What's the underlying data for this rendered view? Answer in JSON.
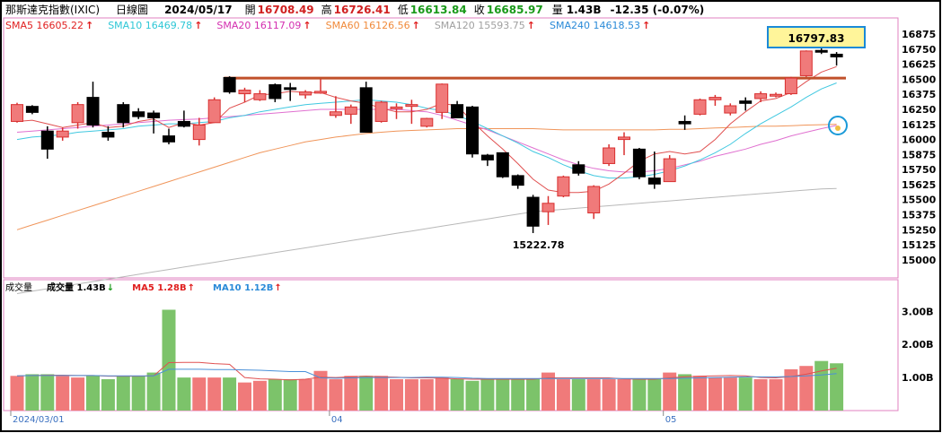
{
  "header": {
    "index_name": "那斯達克指數(IXIC)",
    "period": "日線圖",
    "date": "2024/05/17",
    "open_label": "開",
    "open_value": "16708.49",
    "high_label": "高",
    "high_value": "16726.41",
    "low_label": "低",
    "low_value": "16613.84",
    "close_label": "收",
    "close_value": "16685.97",
    "volume_label": "量",
    "volume_value": "1.43B",
    "change": "-12.35 (-0.07%)"
  },
  "ma_legend": [
    {
      "label": "SMA5 16605.22",
      "arrow": "↑",
      "color": "#e02020"
    },
    {
      "label": "SMA10 16469.78",
      "arrow": "↑",
      "color": "#2ec7d6"
    },
    {
      "label": "SMA20 16117.09",
      "arrow": "↑",
      "color": "#d42fb0"
    },
    {
      "label": "SMA60 16126.56",
      "arrow": "↑",
      "color": "#f08a3a"
    },
    {
      "label": "SMA120 15593.75",
      "arrow": "↑",
      "color": "#a0a0a0"
    },
    {
      "label": "SMA240 14618.53",
      "arrow": "↑",
      "color": "#2a8ad8"
    }
  ],
  "volume_legend": {
    "title": "成交量",
    "items": [
      {
        "label": "成交量 1.43B",
        "arrow": "↓",
        "color": "#000000",
        "arrow_color": "#1a9a1a"
      },
      {
        "label": "MA5 1.28B",
        "arrow": "↑",
        "color": "#e02020",
        "arrow_color": "#e02020"
      },
      {
        "label": "MA10 1.12B",
        "arrow": "↑",
        "color": "#2a8ad8",
        "arrow_color": "#e02020"
      }
    ]
  },
  "annotations": {
    "high_marker": "16797.83",
    "low_marker": "15222.78",
    "resistance_level": 16510
  },
  "colors": {
    "up_fill": "#f07a7a",
    "up_stroke": "#d93030",
    "down_fill": "#000000",
    "vol_up": "#f07a7a",
    "vol_down": "#7cc36a",
    "highlight": "#fff59a"
  },
  "chart_data": {
    "type": "candlestick",
    "price_axis": {
      "ticks": [
        "16875",
        "16750",
        "16625",
        "16500",
        "16375",
        "16250",
        "16125",
        "16000",
        "15875",
        "15750",
        "15625",
        "15500",
        "15375",
        "15250",
        "15125",
        "15000"
      ],
      "range": [
        14880,
        16980
      ]
    },
    "volume_axis": {
      "ticks": [
        "3.00B",
        "2.00B",
        "1.00B"
      ],
      "range": [
        0,
        3.85
      ]
    },
    "x_labels": [
      {
        "index": 0,
        "label": "2024/03/01"
      },
      {
        "index": 21,
        "label": "04"
      },
      {
        "index": 43,
        "label": "05"
      }
    ],
    "candles": [
      {
        "o": 16150,
        "h": 16305,
        "l": 16140,
        "c": 16290,
        "v": 1.05
      },
      {
        "o": 16275,
        "h": 16285,
        "l": 16210,
        "c": 16225,
        "v": 1.1
      },
      {
        "o": 16070,
        "h": 16110,
        "l": 15840,
        "c": 15920,
        "v": 1.1
      },
      {
        "o": 16020,
        "h": 16100,
        "l": 15990,
        "c": 16070,
        "v": 1.05
      },
      {
        "o": 16140,
        "h": 16310,
        "l": 16090,
        "c": 16290,
        "v": 1.0
      },
      {
        "o": 16350,
        "h": 16480,
        "l": 16100,
        "c": 16120,
        "v": 1.05
      },
      {
        "o": 16060,
        "h": 16110,
        "l": 15990,
        "c": 16020,
        "v": 0.95
      },
      {
        "o": 16290,
        "h": 16310,
        "l": 16100,
        "c": 16140,
        "v": 1.05
      },
      {
        "o": 16230,
        "h": 16260,
        "l": 16170,
        "c": 16190,
        "v": 1.05
      },
      {
        "o": 16220,
        "h": 16240,
        "l": 16050,
        "c": 16180,
        "v": 1.15
      },
      {
        "o": 16030,
        "h": 16090,
        "l": 15960,
        "c": 15980,
        "v": 3.05
      },
      {
        "o": 16150,
        "h": 16240,
        "l": 16100,
        "c": 16110,
        "v": 1.0
      },
      {
        "o": 16000,
        "h": 16180,
        "l": 15950,
        "c": 16120,
        "v": 1.0
      },
      {
        "o": 16140,
        "h": 16350,
        "l": 16140,
        "c": 16330,
        "v": 1.0
      },
      {
        "o": 16515,
        "h": 16525,
        "l": 16380,
        "c": 16395,
        "v": 1.0
      },
      {
        "o": 16380,
        "h": 16430,
        "l": 16310,
        "c": 16410,
        "v": 0.85
      },
      {
        "o": 16330,
        "h": 16410,
        "l": 16320,
        "c": 16380,
        "v": 0.9
      },
      {
        "o": 16455,
        "h": 16465,
        "l": 16310,
        "c": 16340,
        "v": 0.95
      },
      {
        "o": 16430,
        "h": 16470,
        "l": 16320,
        "c": 16420,
        "v": 0.95
      },
      {
        "o": 16370,
        "h": 16410,
        "l": 16340,
        "c": 16395,
        "v": 0.95
      },
      {
        "o": 16400,
        "h": 16500,
        "l": 16380,
        "c": 16400,
        "v": 1.2
      },
      {
        "o": 16200,
        "h": 16360,
        "l": 16180,
        "c": 16230,
        "v": 0.95
      },
      {
        "o": 16210,
        "h": 16290,
        "l": 16130,
        "c": 16270,
        "v": 1.05
      },
      {
        "o": 16430,
        "h": 16480,
        "l": 16060,
        "c": 16060,
        "v": 1.05
      },
      {
        "o": 16150,
        "h": 16320,
        "l": 16140,
        "c": 16310,
        "v": 1.05
      },
      {
        "o": 16255,
        "h": 16300,
        "l": 16170,
        "c": 16270,
        "v": 0.95
      },
      {
        "o": 16280,
        "h": 16330,
        "l": 16130,
        "c": 16290,
        "v": 0.95
      },
      {
        "o": 16110,
        "h": 16180,
        "l": 16100,
        "c": 16175,
        "v": 0.95
      },
      {
        "o": 16225,
        "h": 16465,
        "l": 16170,
        "c": 16460,
        "v": 1.0
      },
      {
        "o": 16290,
        "h": 16320,
        "l": 16180,
        "c": 16180,
        "v": 0.95
      },
      {
        "o": 16270,
        "h": 16280,
        "l": 15850,
        "c": 15880,
        "v": 0.9
      },
      {
        "o": 15870,
        "h": 15880,
        "l": 15780,
        "c": 15830,
        "v": 0.95
      },
      {
        "o": 15890,
        "h": 15890,
        "l": 15680,
        "c": 15690,
        "v": 0.95
      },
      {
        "o": 15700,
        "h": 15710,
        "l": 15590,
        "c": 15620,
        "v": 0.95
      },
      {
        "o": 15520,
        "h": 15540,
        "l": 15222.78,
        "c": 15280,
        "v": 0.95
      },
      {
        "o": 15400,
        "h": 15530,
        "l": 15290,
        "c": 15470,
        "v": 1.15
      },
      {
        "o": 15530,
        "h": 15700,
        "l": 15520,
        "c": 15690,
        "v": 0.95
      },
      {
        "o": 15790,
        "h": 15820,
        "l": 15700,
        "c": 15720,
        "v": 0.95
      },
      {
        "o": 15390,
        "h": 15620,
        "l": 15340,
        "c": 15610,
        "v": 0.95
      },
      {
        "o": 15800,
        "h": 15960,
        "l": 15780,
        "c": 15930,
        "v": 0.95
      },
      {
        "o": 16000,
        "h": 16060,
        "l": 15870,
        "c": 16020,
        "v": 0.95
      },
      {
        "o": 15920,
        "h": 15930,
        "l": 15670,
        "c": 15690,
        "v": 0.95
      },
      {
        "o": 15680,
        "h": 15900,
        "l": 15590,
        "c": 15630,
        "v": 0.95
      },
      {
        "o": 15650,
        "h": 15870,
        "l": 15650,
        "c": 15840,
        "v": 1.15
      },
      {
        "o": 16150,
        "h": 16200,
        "l": 16080,
        "c": 16130,
        "v": 1.1
      },
      {
        "o": 16210,
        "h": 16340,
        "l": 16200,
        "c": 16330,
        "v": 1.05
      },
      {
        "o": 16330,
        "h": 16370,
        "l": 16280,
        "c": 16350,
        "v": 1.0
      },
      {
        "o": 16220,
        "h": 16300,
        "l": 16200,
        "c": 16280,
        "v": 1.0
      },
      {
        "o": 16320,
        "h": 16350,
        "l": 16240,
        "c": 16300,
        "v": 1.0
      },
      {
        "o": 16340,
        "h": 16400,
        "l": 16310,
        "c": 16380,
        "v": 0.95
      },
      {
        "o": 16370,
        "h": 16390,
        "l": 16350,
        "c": 16375,
        "v": 0.95
      },
      {
        "o": 16380,
        "h": 16520,
        "l": 16370,
        "c": 16510,
        "v": 1.25
      },
      {
        "o": 16530,
        "h": 16740,
        "l": 16520,
        "c": 16735,
        "v": 1.35
      },
      {
        "o": 16740,
        "h": 16797.83,
        "l": 16710,
        "c": 16725,
        "v": 1.5
      },
      {
        "o": 16708.49,
        "h": 16726.41,
        "l": 16613.84,
        "c": 16685.97,
        "v": 1.43
      }
    ],
    "sma5": [
      16150,
      16160,
      16130,
      16100,
      16120,
      16140,
      16100,
      16110,
      16150,
      16170,
      16100,
      16140,
      16120,
      16140,
      16260,
      16310,
      16370,
      16380,
      16400,
      16390,
      16390,
      16350,
      16320,
      16300,
      16260,
      16230,
      16230,
      16250,
      16300,
      16280,
      16150,
      16030,
      15920,
      15800,
      15670,
      15580,
      15560,
      15560,
      15570,
      15630,
      15720,
      15820,
      15880,
      15900,
      15880,
      15900,
      16000,
      16130,
      16230,
      16320,
      16340,
      16390,
      16480,
      16560,
      16605.22
    ],
    "sma10": [
      16000,
      16020,
      16030,
      16040,
      16060,
      16070,
      16080,
      16090,
      16110,
      16120,
      16130,
      16130,
      16140,
      16150,
      16180,
      16200,
      16230,
      16250,
      16270,
      16290,
      16300,
      16310,
      16320,
      16330,
      16320,
      16310,
      16290,
      16260,
      16240,
      16200,
      16150,
      16090,
      16030,
      15970,
      15900,
      15850,
      15790,
      15740,
      15700,
      15680,
      15680,
      15690,
      15710,
      15740,
      15780,
      15830,
      15890,
      15960,
      16050,
      16130,
      16200,
      16270,
      16350,
      16420,
      16469.78
    ],
    "sma20": [
      16060,
      16070,
      16080,
      16090,
      16100,
      16110,
      16120,
      16130,
      16140,
      16150,
      16160,
      16165,
      16170,
      16180,
      16190,
      16200,
      16210,
      16220,
      16230,
      16240,
      16250,
      16250,
      16250,
      16250,
      16250,
      16250,
      16240,
      16230,
      16200,
      16160,
      16120,
      16080,
      16030,
      15980,
      15930,
      15880,
      15830,
      15790,
      15760,
      15740,
      15730,
      15730,
      15740,
      15760,
      15790,
      15820,
      15860,
      15890,
      15920,
      15960,
      15990,
      16030,
      16060,
      16090,
      16117.09
    ],
    "sma60": [
      15250,
      15290,
      15330,
      15370,
      15410,
      15450,
      15490,
      15530,
      15570,
      15610,
      15650,
      15690,
      15730,
      15770,
      15810,
      15850,
      15890,
      15920,
      15950,
      15980,
      16000,
      16020,
      16035,
      16050,
      16060,
      16070,
      16075,
      16080,
      16085,
      16090,
      16090,
      16090,
      16090,
      16090,
      16090,
      16085,
      16080,
      16080,
      16080,
      16080,
      16080,
      16080,
      16080,
      16085,
      16085,
      16090,
      16095,
      16100,
      16105,
      16110,
      16110,
      16115,
      16120,
      16123,
      16126.56
    ],
    "sma120": [
      14720,
      14740,
      14760,
      14780,
      14800,
      14820,
      14840,
      14860,
      14880,
      14900,
      14920,
      14940,
      14960,
      14980,
      15000,
      15020,
      15040,
      15060,
      15080,
      15100,
      15120,
      15140,
      15160,
      15180,
      15200,
      15220,
      15240,
      15260,
      15280,
      15300,
      15320,
      15340,
      15360,
      15380,
      15400,
      15410,
      15420,
      15430,
      15440,
      15450,
      15460,
      15470,
      15480,
      15490,
      15500,
      15510,
      15520,
      15530,
      15540,
      15550,
      15560,
      15570,
      15580,
      15590,
      15593.75
    ],
    "vol_ma5": [
      1.05,
      1.06,
      1.07,
      1.07,
      1.06,
      1.06,
      1.04,
      1.04,
      1.04,
      1.05,
      1.45,
      1.46,
      1.46,
      1.42,
      1.4,
      1.0,
      0.96,
      0.95,
      0.93,
      0.95,
      1.01,
      1.0,
      1.02,
      1.04,
      1.02,
      1.01,
      0.99,
      0.99,
      0.98,
      0.96,
      0.95,
      0.95,
      0.95,
      0.95,
      0.95,
      0.99,
      0.99,
      0.99,
      0.99,
      0.99,
      0.96,
      0.95,
      0.95,
      0.99,
      1.02,
      1.04,
      1.05,
      1.06,
      1.05,
      1.0,
      0.99,
      1.03,
      1.1,
      1.2,
      1.28
    ],
    "vol_ma10": [
      1.05,
      1.06,
      1.06,
      1.06,
      1.06,
      1.06,
      1.05,
      1.05,
      1.05,
      1.05,
      1.25,
      1.25,
      1.25,
      1.24,
      1.24,
      1.23,
      1.22,
      1.2,
      1.18,
      1.18,
      0.99,
      0.98,
      0.99,
      1.0,
      1.0,
      1.0,
      1.0,
      1.01,
      1.01,
      1.0,
      0.98,
      0.97,
      0.97,
      0.97,
      0.97,
      0.97,
      0.97,
      0.97,
      0.97,
      0.97,
      0.97,
      0.97,
      0.97,
      0.97,
      0.98,
      0.99,
      1.0,
      1.01,
      1.02,
      1.02,
      1.02,
      1.03,
      1.05,
      1.08,
      1.12
    ]
  }
}
